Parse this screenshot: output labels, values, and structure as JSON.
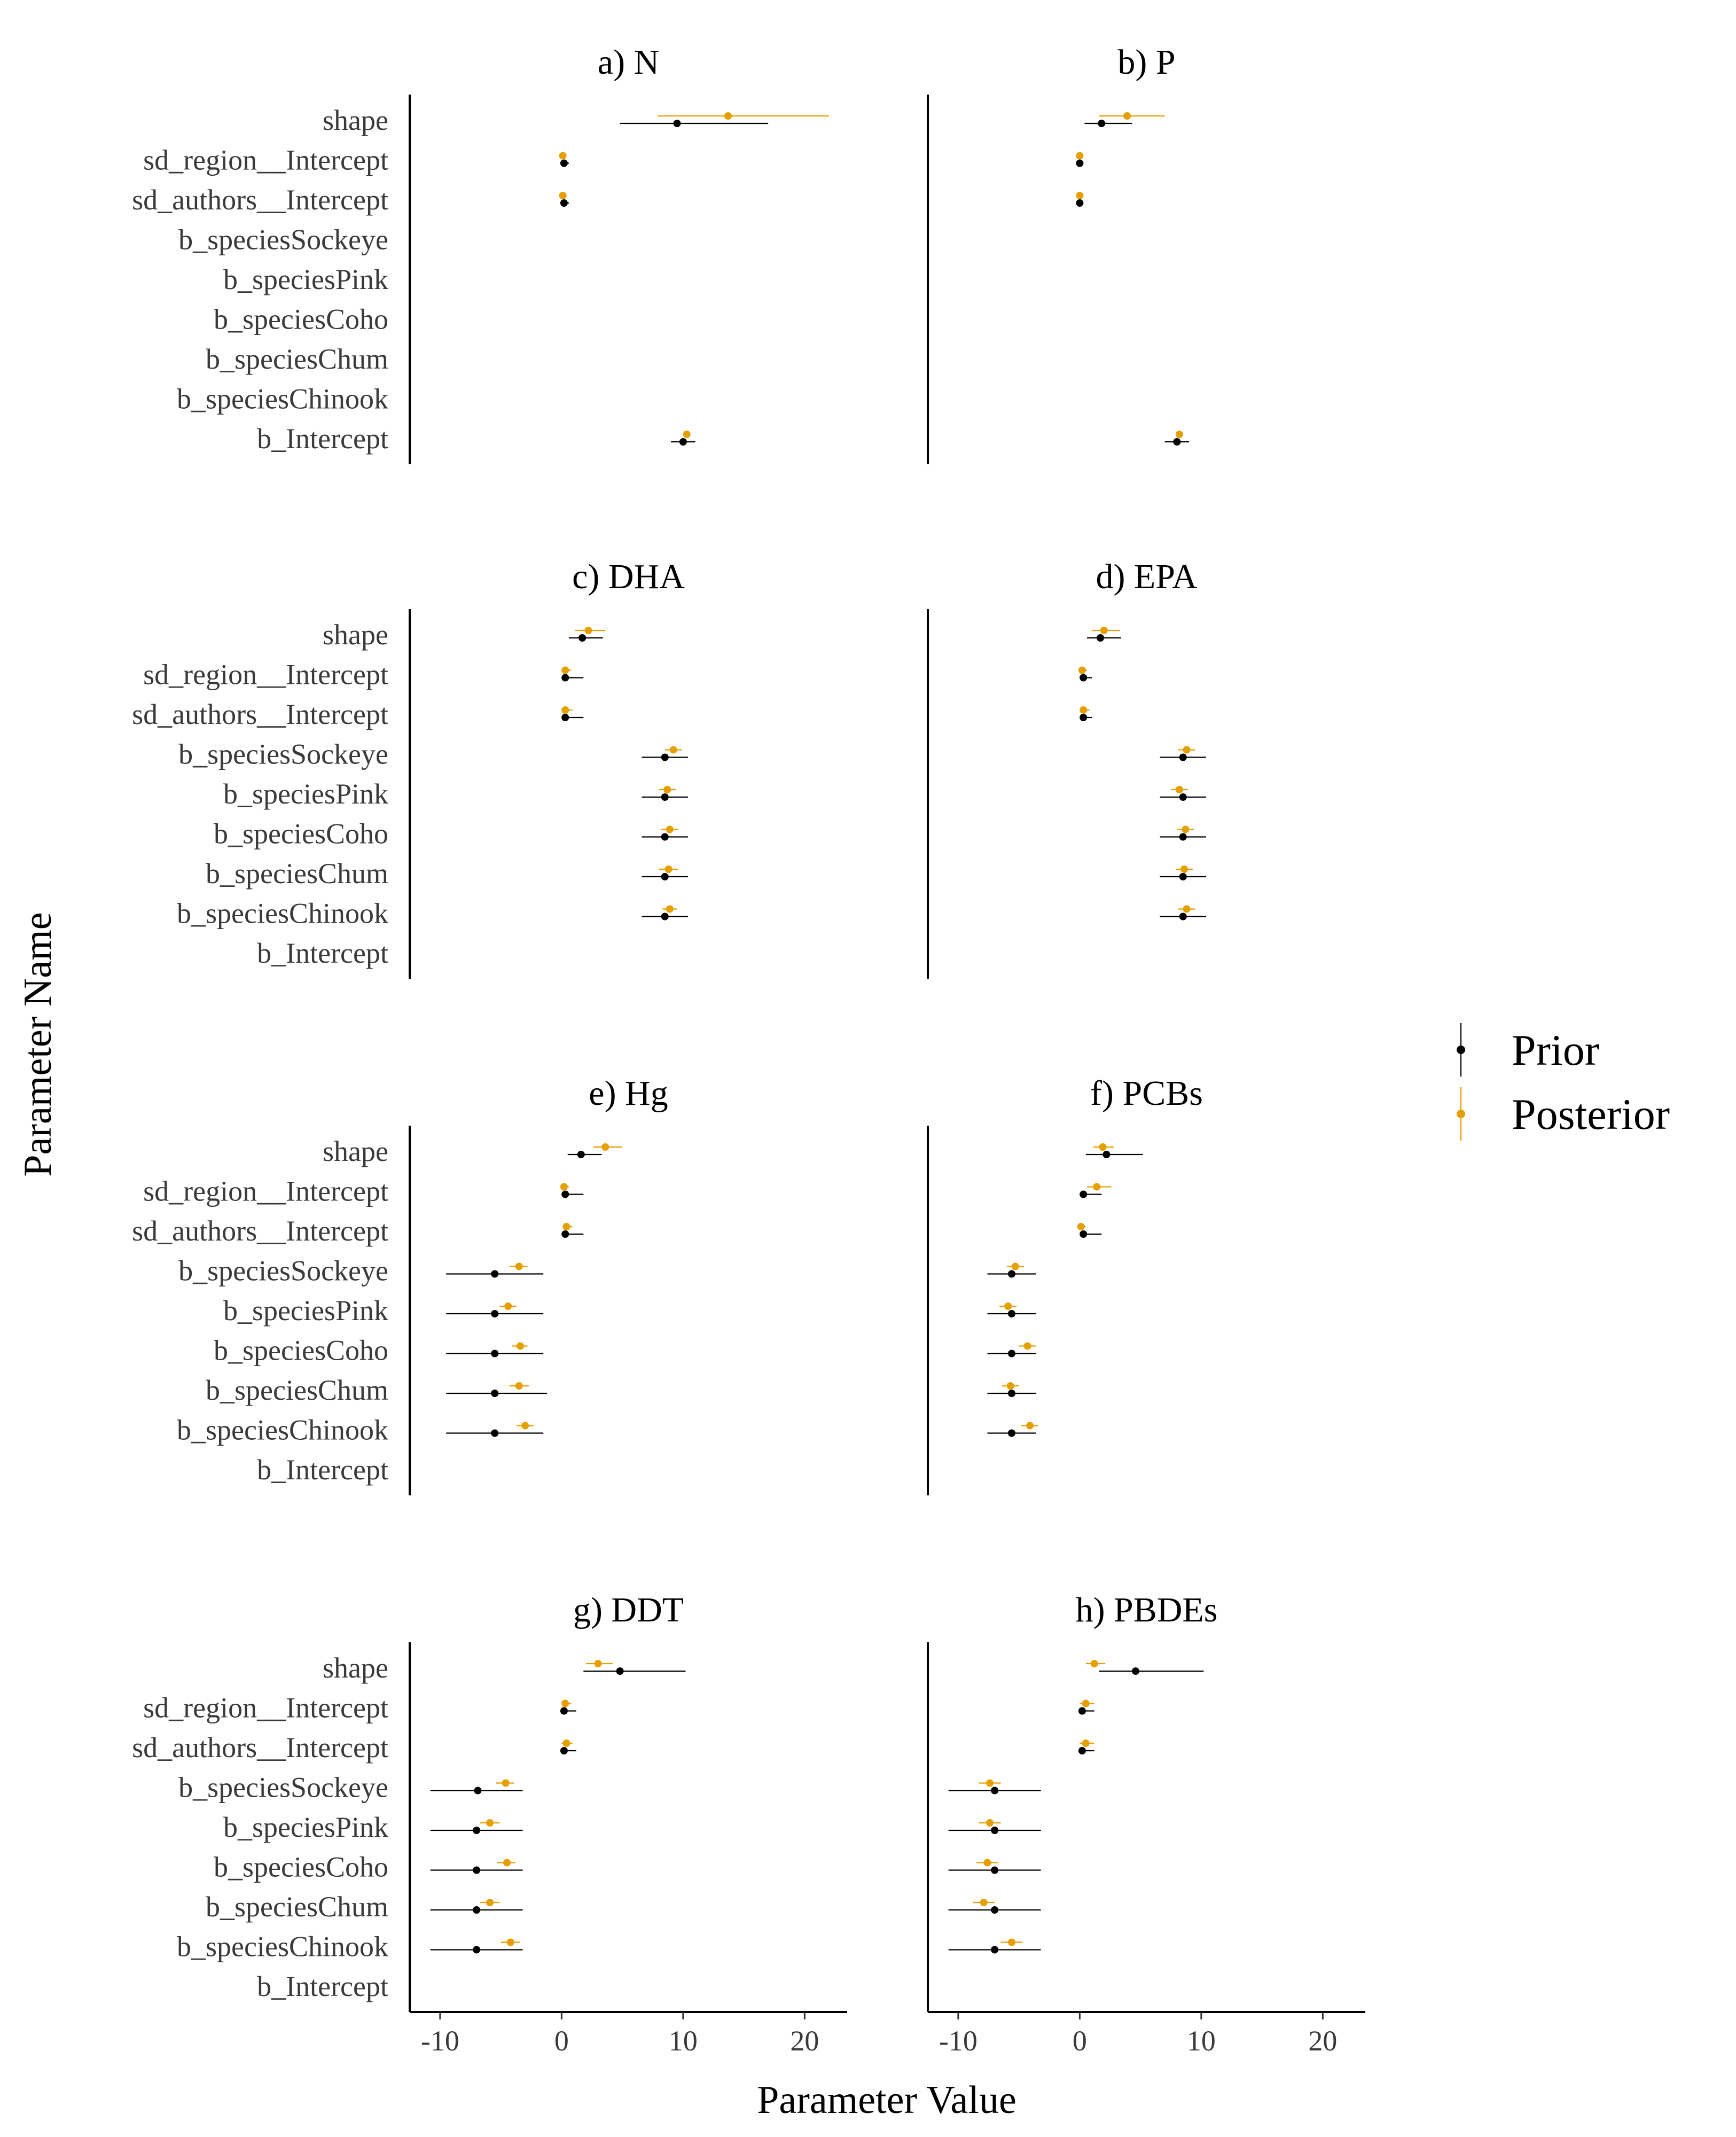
{
  "chart_data": {
    "type": "forest",
    "xlabel": "Parameter Value",
    "ylabel": "Parameter Name",
    "xlim": [
      -12.5,
      23.5
    ],
    "xticks": [
      -10,
      0,
      10,
      20
    ],
    "xtick_labels": [
      "-10",
      "0",
      "10",
      "20"
    ],
    "parameters": [
      "shape",
      "sd_region__Intercept",
      "sd_authors__Intercept",
      "b_speciesSockeye",
      "b_speciesPink",
      "b_speciesCoho",
      "b_speciesChum",
      "b_speciesChinook",
      "b_Intercept"
    ],
    "legend": {
      "position": "right",
      "entries": [
        {
          "label": "Prior",
          "color": "#000000"
        },
        {
          "label": "Posterior",
          "color": "#E69F00"
        }
      ]
    },
    "colors": {
      "prior": "#000000",
      "posterior": "#E69F00"
    },
    "panels": [
      {
        "title": "a) N",
        "prior": {
          "shape": [
            9.5,
            4.8,
            17.0
          ],
          "sd_region__Intercept": [
            0.2,
            0.0,
            0.6
          ],
          "sd_authors__Intercept": [
            0.2,
            0.0,
            0.6
          ],
          "b_Intercept": [
            10.0,
            9.0,
            11.0
          ]
        },
        "posterior": {
          "shape": [
            13.7,
            7.9,
            22.0
          ],
          "sd_region__Intercept": [
            0.1,
            0.0,
            0.3
          ],
          "sd_authors__Intercept": [
            0.1,
            0.0,
            0.3
          ],
          "b_Intercept": [
            10.3,
            10.1,
            10.5
          ]
        }
      },
      {
        "title": "b) P",
        "prior": {
          "shape": [
            1.8,
            0.4,
            4.3
          ],
          "sd_region__Intercept": [
            0.0,
            0.0,
            0.3
          ],
          "sd_authors__Intercept": [
            0.0,
            0.0,
            0.3
          ],
          "b_Intercept": [
            8.0,
            7.0,
            9.0
          ]
        },
        "posterior": {
          "shape": [
            3.9,
            1.6,
            7.0
          ],
          "sd_region__Intercept": [
            0.0,
            0.0,
            0.2
          ],
          "sd_authors__Intercept": [
            0.0,
            0.0,
            0.2
          ],
          "b_Intercept": [
            8.2,
            8.0,
            8.4
          ]
        }
      },
      {
        "title": "c) DHA",
        "prior": {
          "shape": [
            1.7,
            0.6,
            3.4
          ],
          "sd_region__Intercept": [
            0.3,
            0.0,
            1.8
          ],
          "sd_authors__Intercept": [
            0.3,
            0.0,
            1.8
          ],
          "b_speciesSockeye": [
            8.5,
            6.6,
            10.4
          ],
          "b_speciesPink": [
            8.5,
            6.6,
            10.4
          ],
          "b_speciesCoho": [
            8.5,
            6.6,
            10.4
          ],
          "b_speciesChum": [
            8.5,
            6.6,
            10.4
          ],
          "b_speciesChinook": [
            8.5,
            6.6,
            10.4
          ]
        },
        "posterior": {
          "shape": [
            2.2,
            1.1,
            3.6
          ],
          "sd_region__Intercept": [
            0.3,
            0.0,
            0.8
          ],
          "sd_authors__Intercept": [
            0.3,
            0.0,
            0.9
          ],
          "b_speciesSockeye": [
            9.2,
            8.5,
            9.9
          ],
          "b_speciesPink": [
            8.7,
            8.0,
            9.4
          ],
          "b_speciesCoho": [
            8.9,
            8.2,
            9.6
          ],
          "b_speciesChum": [
            8.8,
            8.0,
            9.6
          ],
          "b_speciesChinook": [
            8.9,
            8.3,
            9.5
          ]
        }
      },
      {
        "title": "d) EPA",
        "prior": {
          "shape": [
            1.7,
            0.6,
            3.4
          ],
          "sd_region__Intercept": [
            0.3,
            0.0,
            1.0
          ],
          "sd_authors__Intercept": [
            0.3,
            0.0,
            1.0
          ],
          "b_speciesSockeye": [
            8.5,
            6.6,
            10.4
          ],
          "b_speciesPink": [
            8.5,
            6.6,
            10.4
          ],
          "b_speciesCoho": [
            8.5,
            6.6,
            10.4
          ],
          "b_speciesChum": [
            8.5,
            6.6,
            10.4
          ],
          "b_speciesChinook": [
            8.5,
            6.6,
            10.4
          ]
        },
        "posterior": {
          "shape": [
            2.0,
            1.0,
            3.3
          ],
          "sd_region__Intercept": [
            0.2,
            0.0,
            0.6
          ],
          "sd_authors__Intercept": [
            0.3,
            0.0,
            0.8
          ],
          "b_speciesSockeye": [
            8.8,
            8.1,
            9.5
          ],
          "b_speciesPink": [
            8.2,
            7.5,
            8.9
          ],
          "b_speciesCoho": [
            8.7,
            8.0,
            9.4
          ],
          "b_speciesChum": [
            8.6,
            7.9,
            9.3
          ],
          "b_speciesChinook": [
            8.8,
            8.1,
            9.5
          ]
        }
      },
      {
        "title": "e) Hg",
        "prior": {
          "shape": [
            1.6,
            0.5,
            3.3
          ],
          "sd_region__Intercept": [
            0.3,
            0.0,
            1.8
          ],
          "sd_authors__Intercept": [
            0.3,
            0.0,
            1.8
          ],
          "b_speciesSockeye": [
            -5.5,
            -9.5,
            -1.5
          ],
          "b_speciesPink": [
            -5.5,
            -9.5,
            -1.5
          ],
          "b_speciesCoho": [
            -5.5,
            -9.5,
            -1.5
          ],
          "b_speciesChum": [
            -5.5,
            -9.5,
            -1.2
          ],
          "b_speciesChinook": [
            -5.5,
            -9.5,
            -1.5
          ]
        },
        "posterior": {
          "shape": [
            3.6,
            2.6,
            5.0
          ],
          "sd_region__Intercept": [
            0.2,
            0.0,
            0.6
          ],
          "sd_authors__Intercept": [
            0.4,
            0.1,
            0.9
          ],
          "b_speciesSockeye": [
            -3.5,
            -4.3,
            -2.8
          ],
          "b_speciesPink": [
            -4.4,
            -5.1,
            -3.7
          ],
          "b_speciesCoho": [
            -3.4,
            -4.1,
            -2.8
          ],
          "b_speciesChum": [
            -3.5,
            -4.3,
            -2.7
          ],
          "b_speciesChinook": [
            -3.0,
            -3.7,
            -2.3
          ]
        }
      },
      {
        "title": "f) PCBs",
        "prior": {
          "shape": [
            2.2,
            0.5,
            5.2
          ],
          "sd_region__Intercept": [
            0.3,
            0.0,
            1.8
          ],
          "sd_authors__Intercept": [
            0.3,
            0.0,
            1.8
          ],
          "b_speciesSockeye": [
            -5.6,
            -7.6,
            -3.6
          ],
          "b_speciesPink": [
            -5.6,
            -7.6,
            -3.6
          ],
          "b_speciesCoho": [
            -5.6,
            -7.6,
            -3.6
          ],
          "b_speciesChum": [
            -5.6,
            -7.6,
            -3.6
          ],
          "b_speciesChinook": [
            -5.6,
            -7.6,
            -3.6
          ]
        },
        "posterior": {
          "shape": [
            1.9,
            1.1,
            2.8
          ],
          "sd_region__Intercept": [
            1.4,
            0.6,
            2.6
          ],
          "sd_authors__Intercept": [
            0.1,
            0.0,
            0.5
          ],
          "b_speciesSockeye": [
            -5.3,
            -6.0,
            -4.6
          ],
          "b_speciesPink": [
            -5.9,
            -6.6,
            -5.2
          ],
          "b_speciesCoho": [
            -4.3,
            -5.0,
            -3.6
          ],
          "b_speciesChum": [
            -5.7,
            -6.4,
            -5.0
          ],
          "b_speciesChinook": [
            -4.1,
            -4.8,
            -3.4
          ]
        }
      },
      {
        "title": "g) DDT",
        "prior": {
          "shape": [
            4.8,
            1.8,
            10.2
          ],
          "sd_region__Intercept": [
            0.2,
            0.0,
            1.2
          ],
          "sd_authors__Intercept": [
            0.2,
            0.0,
            1.2
          ],
          "b_speciesSockeye": [
            -6.9,
            -10.8,
            -3.2
          ],
          "b_speciesPink": [
            -7.0,
            -10.8,
            -3.2
          ],
          "b_speciesCoho": [
            -7.0,
            -10.8,
            -3.2
          ],
          "b_speciesChum": [
            -7.0,
            -10.8,
            -3.2
          ],
          "b_speciesChinook": [
            -7.0,
            -10.8,
            -3.2
          ]
        },
        "posterior": {
          "shape": [
            3.0,
            2.0,
            4.2
          ],
          "sd_region__Intercept": [
            0.3,
            0.0,
            0.8
          ],
          "sd_authors__Intercept": [
            0.4,
            0.0,
            0.9
          ],
          "b_speciesSockeye": [
            -4.6,
            -5.4,
            -3.9
          ],
          "b_speciesPink": [
            -5.9,
            -6.7,
            -5.1
          ],
          "b_speciesCoho": [
            -4.5,
            -5.3,
            -3.8
          ],
          "b_speciesChum": [
            -5.9,
            -6.7,
            -5.1
          ],
          "b_speciesChinook": [
            -4.2,
            -5.0,
            -3.4
          ]
        }
      },
      {
        "title": "h) PBDEs",
        "prior": {
          "shape": [
            4.6,
            1.6,
            10.2
          ],
          "sd_region__Intercept": [
            0.2,
            0.0,
            1.2
          ],
          "sd_authors__Intercept": [
            0.2,
            0.0,
            1.2
          ],
          "b_speciesSockeye": [
            -7.0,
            -10.8,
            -3.2
          ],
          "b_speciesPink": [
            -7.0,
            -10.8,
            -3.2
          ],
          "b_speciesCoho": [
            -7.0,
            -10.8,
            -3.2
          ],
          "b_speciesChum": [
            -7.0,
            -10.8,
            -3.2
          ],
          "b_speciesChinook": [
            -7.0,
            -10.8,
            -3.2
          ]
        },
        "posterior": {
          "shape": [
            1.2,
            0.5,
            2.1
          ],
          "sd_region__Intercept": [
            0.5,
            0.0,
            1.2
          ],
          "sd_authors__Intercept": [
            0.5,
            0.0,
            1.2
          ],
          "b_speciesSockeye": [
            -7.4,
            -8.3,
            -6.5
          ],
          "b_speciesPink": [
            -7.4,
            -8.3,
            -6.5
          ],
          "b_speciesCoho": [
            -7.6,
            -8.5,
            -6.7
          ],
          "b_speciesChum": [
            -7.9,
            -8.8,
            -7.0
          ],
          "b_speciesChinook": [
            -5.6,
            -6.5,
            -4.7
          ]
        }
      }
    ]
  }
}
